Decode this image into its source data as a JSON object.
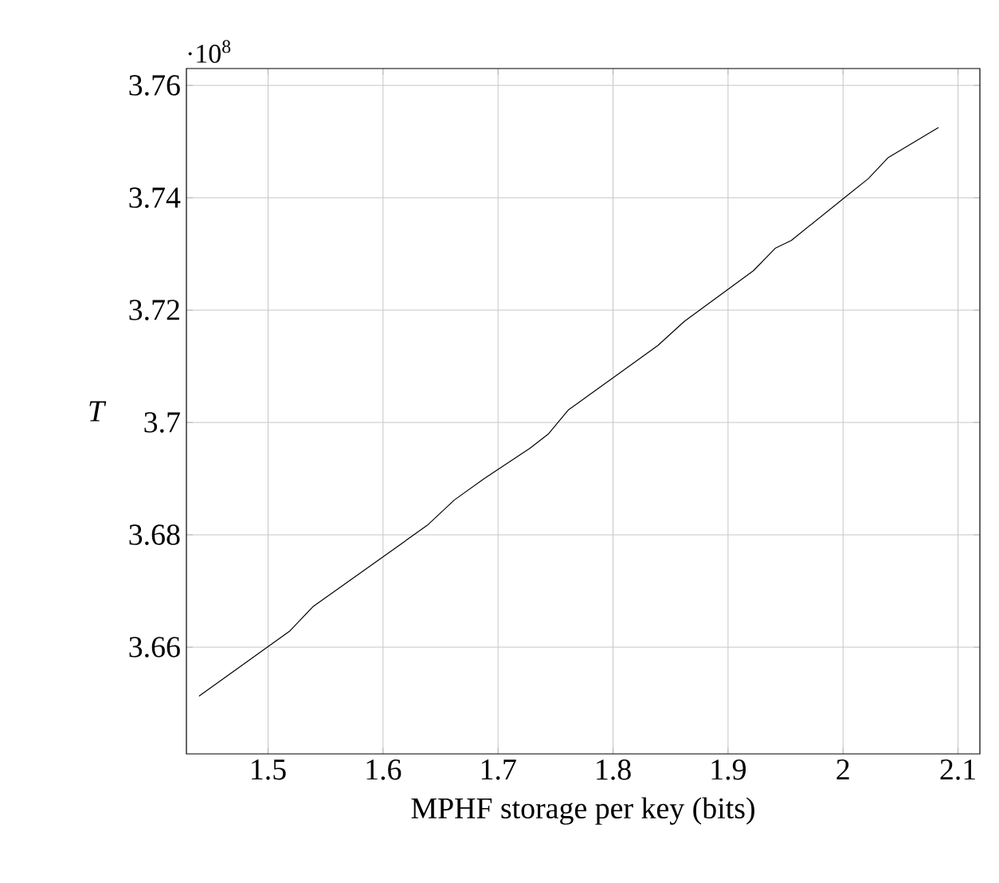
{
  "chart_data": {
    "type": "line",
    "xlabel": "MPHF storage per key (bits)",
    "ylabel": "T",
    "annotations": [
      "·10$^{8}$"
    ],
    "x": [
      1.44,
      1.5185,
      1.539,
      1.6385,
      1.662,
      1.688,
      1.7277,
      1.744,
      1.761,
      1.839,
      1.862,
      1.922,
      1.941,
      1.955,
      2.0,
      2.022,
      2.039,
      2.083
    ],
    "series": [
      {
        "color": "#000000",
        "values": [
          3.6513,
          3.6628,
          3.6672,
          3.6817,
          3.6862,
          3.69,
          3.6954,
          3.698,
          3.7022,
          3.7137,
          3.718,
          3.727,
          3.731,
          3.7324,
          3.7398,
          3.7434,
          3.7471,
          3.7525
        ]
      }
    ],
    "xlim": [
      1.429,
      2.119
    ],
    "ylim": [
      3.641,
      3.763
    ],
    "xticks": [
      1.5,
      1.6,
      1.7,
      1.8,
      1.9,
      2,
      2.1
    ],
    "yticks": [
      3.66,
      3.68,
      3.7,
      3.72,
      3.74,
      3.76
    ],
    "grid": true,
    "marker": "none",
    "line_style": "solid"
  }
}
